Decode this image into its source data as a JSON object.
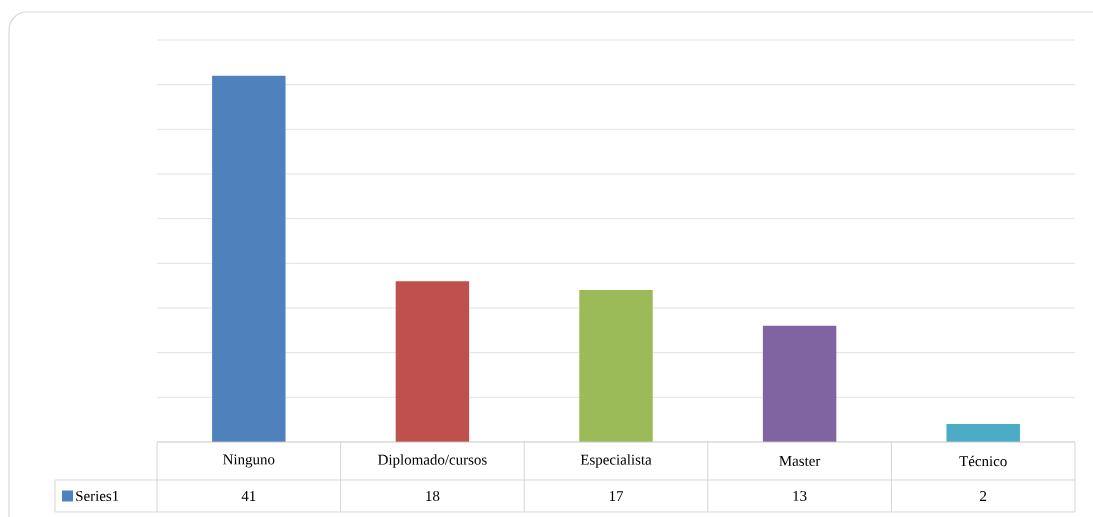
{
  "chart_data": {
    "type": "bar",
    "categories": [
      "Ninguno",
      "Diplomado/cursos",
      "Especialista",
      "Master",
      "Técnico"
    ],
    "series": [
      {
        "name": "Series1",
        "color": "#4f81bd",
        "colors": [
          "#4f81bd",
          "#c0504d",
          "#9bbb59",
          "#8064a2",
          "#4bacc6"
        ],
        "values": [
          41,
          18,
          17,
          13,
          2
        ]
      }
    ],
    "ylim": [
      0,
      45
    ],
    "yticks": [
      {
        "value": 0,
        "label": null
      },
      {
        "value": 5,
        "label": null
      },
      {
        "value": 10,
        "label": null
      },
      {
        "value": 15,
        "label": null
      },
      {
        "value": 20,
        "label": null
      },
      {
        "value": 25,
        "label": null
      },
      {
        "value": 30,
        "label": null
      },
      {
        "value": 35,
        "label": null
      },
      {
        "value": 40,
        "label": null
      },
      {
        "value": 45,
        "label": null
      }
    ],
    "grid": "y",
    "tick_labels": "x",
    "data_labels": true,
    "legend": "bottom left"
  }
}
